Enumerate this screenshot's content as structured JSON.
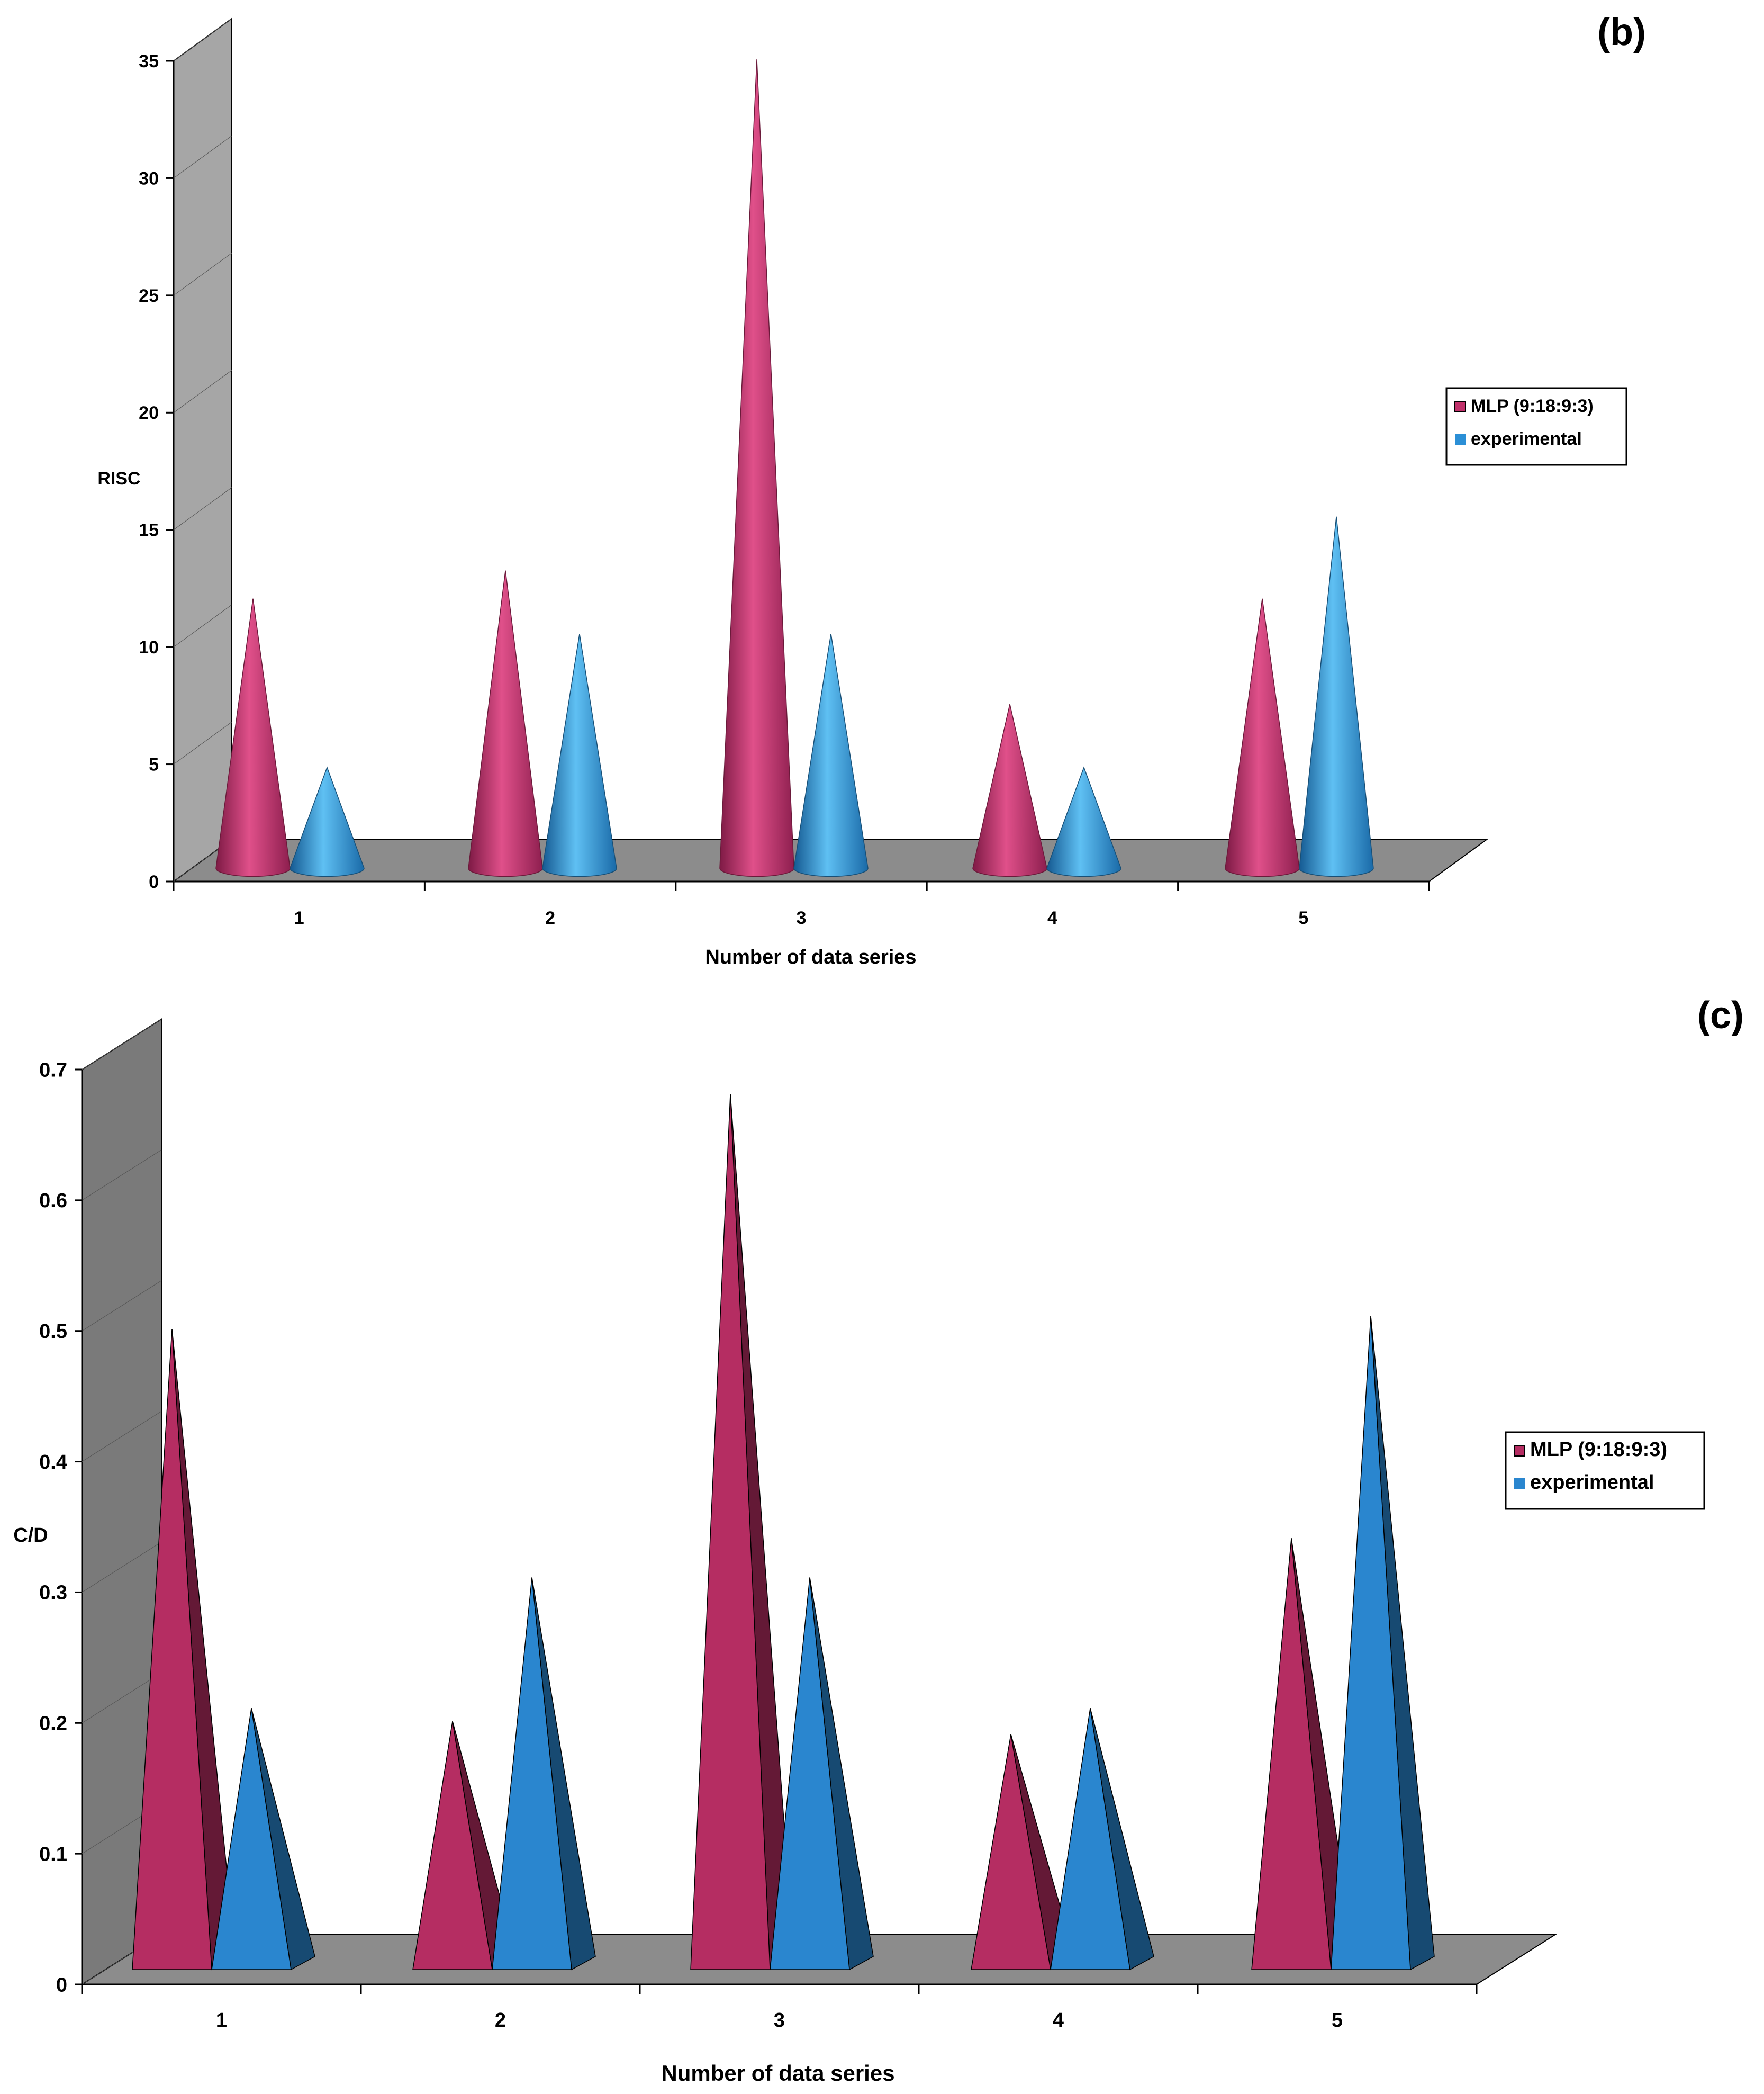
{
  "chart_data": [
    {
      "panel": "(b)",
      "type": "bar",
      "style": "3d-cone",
      "xlabel": "Number of data series",
      "ylabel": "RISC",
      "ylim": [
        0,
        35
      ],
      "yticks": [
        "0",
        "5",
        "10",
        "15",
        "20",
        "25",
        "30",
        "35"
      ],
      "categories": [
        "1",
        "2",
        "3",
        "4",
        "5"
      ],
      "legend_position": "right",
      "series": [
        {
          "name": "MLP (9:18:9:3)",
          "color": "#c0306a",
          "values": [
            11.5,
            12.7,
            34.5,
            7.0,
            11.5
          ]
        },
        {
          "name": "experimental",
          "color": "#2b8fd6",
          "values": [
            4.3,
            10.0,
            10.0,
            4.3,
            15.0
          ]
        }
      ]
    },
    {
      "panel": "(c)",
      "type": "bar",
      "style": "3d-pyramid",
      "xlabel": "Number of data series",
      "ylabel": "C/D",
      "ylim": [
        0,
        0.7
      ],
      "yticks": [
        "0",
        "0.1",
        "0.2",
        "0.3",
        "0.4",
        "0.5",
        "0.6",
        "0.7"
      ],
      "categories": [
        "1",
        "2",
        "3",
        "4",
        "5"
      ],
      "legend_position": "right",
      "series": [
        {
          "name": "MLP (9:18:9:3)",
          "color": "#b52d62",
          "values": [
            0.49,
            0.19,
            0.67,
            0.18,
            0.33
          ]
        },
        {
          "name": "experimental",
          "color": "#2a86cf",
          "values": [
            0.2,
            0.3,
            0.3,
            0.2,
            0.5
          ]
        }
      ]
    }
  ]
}
